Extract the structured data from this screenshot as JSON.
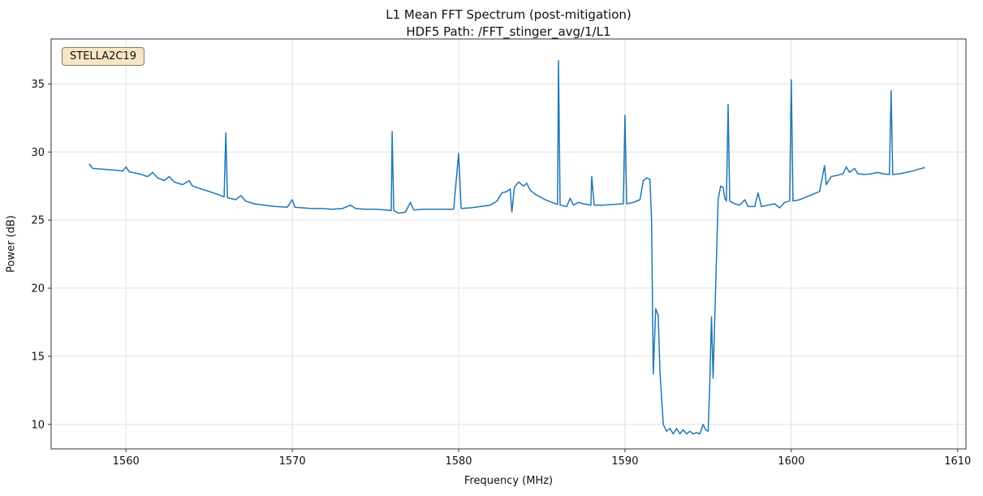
{
  "annotation": {
    "label": "STELLA2C19",
    "bg": "#F5E7C6",
    "border": "#8A7B5C"
  },
  "chart_data": {
    "type": "line",
    "title": "L1 Mean FFT Spectrum (post-mitigation)",
    "subtitle": "HDF5 Path: /FFT_stinger_avg/1/L1",
    "xlabel": "Frequency (MHz)",
    "ylabel": "Power (dB)",
    "xlim": [
      1555.5,
      1610.5
    ],
    "ylim": [
      8.2,
      38.3
    ],
    "xticks": [
      1560,
      1570,
      1580,
      1590,
      1600,
      1610
    ],
    "yticks": [
      10,
      15,
      20,
      25,
      30,
      35
    ],
    "grid": true,
    "grid_color": "#e0e0e0",
    "legend_position": "none",
    "series": [
      {
        "name": "L1 mean FFT spectrum",
        "color": "#1f77b4",
        "points": [
          [
            1557.8,
            29.1
          ],
          [
            1558.0,
            28.8
          ],
          [
            1558.5,
            28.75
          ],
          [
            1559.0,
            28.7
          ],
          [
            1559.5,
            28.65
          ],
          [
            1559.8,
            28.6
          ],
          [
            1560.0,
            28.9
          ],
          [
            1560.2,
            28.55
          ],
          [
            1560.8,
            28.4
          ],
          [
            1561.3,
            28.2
          ],
          [
            1561.6,
            28.5
          ],
          [
            1561.9,
            28.1
          ],
          [
            1562.3,
            27.9
          ],
          [
            1562.6,
            28.2
          ],
          [
            1562.9,
            27.8
          ],
          [
            1563.4,
            27.6
          ],
          [
            1563.8,
            27.9
          ],
          [
            1564.0,
            27.5
          ],
          [
            1564.5,
            27.3
          ],
          [
            1565.0,
            27.1
          ],
          [
            1565.5,
            26.9
          ],
          [
            1565.9,
            26.7
          ],
          [
            1566.0,
            31.4
          ],
          [
            1566.1,
            26.65
          ],
          [
            1566.6,
            26.5
          ],
          [
            1566.9,
            26.8
          ],
          [
            1567.2,
            26.4
          ],
          [
            1567.7,
            26.2
          ],
          [
            1568.3,
            26.1
          ],
          [
            1569.0,
            26.0
          ],
          [
            1569.7,
            25.95
          ],
          [
            1570.0,
            26.5
          ],
          [
            1570.15,
            25.95
          ],
          [
            1570.6,
            25.9
          ],
          [
            1571.2,
            25.85
          ],
          [
            1571.8,
            25.85
          ],
          [
            1572.4,
            25.8
          ],
          [
            1573.0,
            25.85
          ],
          [
            1573.5,
            26.1
          ],
          [
            1573.8,
            25.85
          ],
          [
            1574.4,
            25.8
          ],
          [
            1575.0,
            25.8
          ],
          [
            1575.6,
            25.75
          ],
          [
            1575.95,
            25.7
          ],
          [
            1576.0,
            31.5
          ],
          [
            1576.1,
            25.7
          ],
          [
            1576.4,
            25.5
          ],
          [
            1576.8,
            25.6
          ],
          [
            1577.1,
            26.3
          ],
          [
            1577.3,
            25.75
          ],
          [
            1577.9,
            25.8
          ],
          [
            1578.5,
            25.8
          ],
          [
            1579.1,
            25.8
          ],
          [
            1579.7,
            25.8
          ],
          [
            1580.0,
            29.9
          ],
          [
            1580.15,
            25.85
          ],
          [
            1580.7,
            25.9
          ],
          [
            1581.3,
            26.0
          ],
          [
            1581.9,
            26.1
          ],
          [
            1582.3,
            26.4
          ],
          [
            1582.6,
            27.0
          ],
          [
            1582.9,
            27.1
          ],
          [
            1583.1,
            27.3
          ],
          [
            1583.2,
            25.6
          ],
          [
            1583.35,
            27.4
          ],
          [
            1583.6,
            27.8
          ],
          [
            1583.9,
            27.5
          ],
          [
            1584.1,
            27.7
          ],
          [
            1584.3,
            27.2
          ],
          [
            1584.6,
            26.9
          ],
          [
            1584.9,
            26.7
          ],
          [
            1585.2,
            26.5
          ],
          [
            1585.6,
            26.3
          ],
          [
            1585.95,
            26.15
          ],
          [
            1586.0,
            36.7
          ],
          [
            1586.1,
            26.1
          ],
          [
            1586.5,
            26.0
          ],
          [
            1586.7,
            26.6
          ],
          [
            1586.9,
            26.1
          ],
          [
            1587.2,
            26.3
          ],
          [
            1587.5,
            26.2
          ],
          [
            1587.95,
            26.1
          ],
          [
            1588.0,
            28.2
          ],
          [
            1588.15,
            26.1
          ],
          [
            1588.7,
            26.1
          ],
          [
            1589.3,
            26.15
          ],
          [
            1589.9,
            26.2
          ],
          [
            1590.0,
            32.7
          ],
          [
            1590.1,
            26.2
          ],
          [
            1590.5,
            26.3
          ],
          [
            1590.9,
            26.5
          ],
          [
            1591.1,
            27.9
          ],
          [
            1591.3,
            28.1
          ],
          [
            1591.5,
            28.0
          ],
          [
            1591.6,
            25.0
          ],
          [
            1591.7,
            13.7
          ],
          [
            1591.85,
            18.5
          ],
          [
            1592.0,
            18.0
          ],
          [
            1592.1,
            13.9
          ],
          [
            1592.3,
            10.0
          ],
          [
            1592.5,
            9.5
          ],
          [
            1592.7,
            9.7
          ],
          [
            1592.9,
            9.3
          ],
          [
            1593.1,
            9.7
          ],
          [
            1593.3,
            9.3
          ],
          [
            1593.5,
            9.6
          ],
          [
            1593.7,
            9.3
          ],
          [
            1593.9,
            9.5
          ],
          [
            1594.1,
            9.3
          ],
          [
            1594.3,
            9.4
          ],
          [
            1594.5,
            9.3
          ],
          [
            1594.7,
            10.0
          ],
          [
            1594.85,
            9.6
          ],
          [
            1595.0,
            9.5
          ],
          [
            1595.1,
            13.0
          ],
          [
            1595.2,
            17.9
          ],
          [
            1595.3,
            13.4
          ],
          [
            1595.45,
            20.0
          ],
          [
            1595.6,
            26.5
          ],
          [
            1595.75,
            27.5
          ],
          [
            1595.9,
            27.4
          ],
          [
            1596.0,
            26.6
          ],
          [
            1596.1,
            26.4
          ],
          [
            1596.2,
            33.5
          ],
          [
            1596.3,
            26.4
          ],
          [
            1596.6,
            26.2
          ],
          [
            1596.9,
            26.1
          ],
          [
            1597.2,
            26.5
          ],
          [
            1597.4,
            26.0
          ],
          [
            1597.8,
            26.0
          ],
          [
            1598.0,
            27.0
          ],
          [
            1598.2,
            26.0
          ],
          [
            1598.6,
            26.1
          ],
          [
            1599.0,
            26.2
          ],
          [
            1599.3,
            25.9
          ],
          [
            1599.6,
            26.3
          ],
          [
            1599.9,
            26.4
          ],
          [
            1600.0,
            35.3
          ],
          [
            1600.1,
            26.4
          ],
          [
            1600.5,
            26.5
          ],
          [
            1600.9,
            26.7
          ],
          [
            1601.3,
            26.9
          ],
          [
            1601.7,
            27.1
          ],
          [
            1602.0,
            29.0
          ],
          [
            1602.1,
            27.6
          ],
          [
            1602.4,
            28.2
          ],
          [
            1602.8,
            28.3
          ],
          [
            1603.1,
            28.4
          ],
          [
            1603.3,
            28.9
          ],
          [
            1603.5,
            28.5
          ],
          [
            1603.8,
            28.8
          ],
          [
            1604.0,
            28.4
          ],
          [
            1604.4,
            28.35
          ],
          [
            1604.8,
            28.4
          ],
          [
            1605.2,
            28.5
          ],
          [
            1605.5,
            28.4
          ],
          [
            1605.9,
            28.35
          ],
          [
            1606.0,
            34.5
          ],
          [
            1606.1,
            28.35
          ],
          [
            1606.5,
            28.4
          ],
          [
            1606.9,
            28.5
          ],
          [
            1607.3,
            28.6
          ],
          [
            1607.7,
            28.75
          ],
          [
            1608.0,
            28.85
          ]
        ]
      }
    ]
  }
}
